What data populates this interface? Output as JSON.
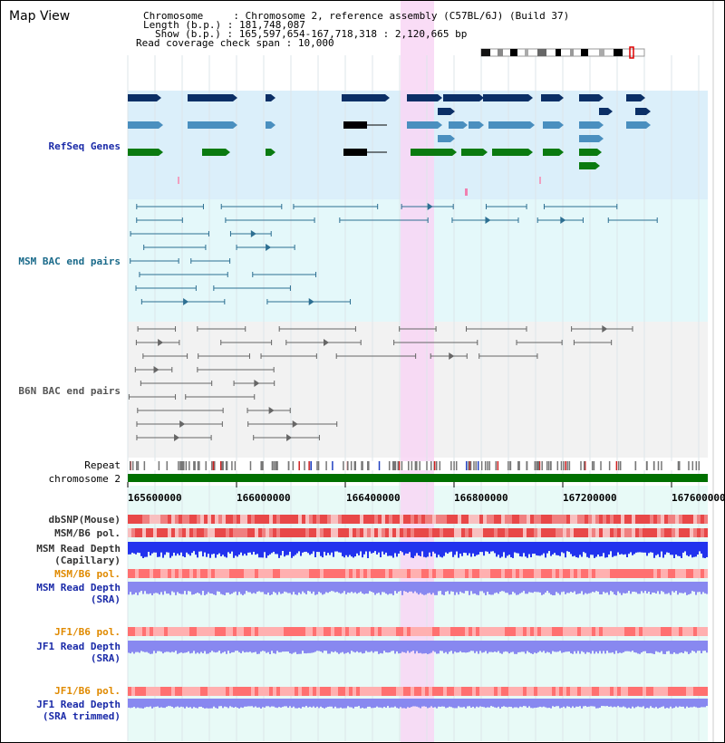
{
  "view": {
    "title": "Map View"
  },
  "info": {
    "chromosome_label": "Chromosome",
    "chromosome_value": "Chromosome 2, reference assembly (C57BL/6J) (Build 37)",
    "length_label": "Length (b.p.)",
    "length_value": "181,748,087",
    "show_label": "Show (b.p.)",
    "show_value": "165,597,654-167,718,318 : 2,120,665 bp",
    "coverage_label": "Read coverage check span",
    "coverage_value": "10,000"
  },
  "tracks": {
    "refseq": "RefSeq Genes",
    "msm_bac": "MSM BAC end pairs",
    "b6n_bac": "B6N BAC end pairs",
    "repeat": "Repeat",
    "chromosome": "chromosome 2",
    "dbsnp": "dbSNP(Mouse)",
    "msm_b6_pol": "MSM/B6 pol.",
    "msm_depth_cap_1": "MSM Read Depth",
    "msm_depth_cap_2": "(Capillary)",
    "msm_b6_pol_2": "MSM/B6 pol.",
    "msm_depth_sra_1": "MSM Read Depth",
    "msm_depth_sra_2": "(SRA)",
    "jf1_b6_pol": "JF1/B6 pol.",
    "jf1_depth_sra_1": "JF1 Read Depth",
    "jf1_depth_sra_2": "(SRA)",
    "jf1_b6_pol_2": "JF1/B6 pol.",
    "jf1_depth_trim_1": "JF1 Read Depth",
    "jf1_depth_trim_2": "(SRA trimmed)"
  },
  "axis": {
    "ticks": [
      "165600000",
      "166000000",
      "166400000",
      "166800000",
      "167200000",
      "167600000"
    ]
  },
  "colors": {
    "highlight": "#f8d6f4",
    "refseq_bg": "#dbeffa",
    "msm_bg": "#e4f8fa",
    "b6n_bg": "#f2f2f2",
    "lower_bg": "#e8faf7",
    "gene_dark": "#0b2f66",
    "gene_mid": "#4a8fbf",
    "gene_green": "#0a7a10",
    "msm_line": "#2d6f92",
    "b6n_line": "#666666",
    "chrom_bar": "#007000",
    "depth_blue": "#2233ee",
    "depth_violet": "#8888f0",
    "label_blue": "#1a2aa8",
    "label_teal": "#1a6a8a",
    "label_orange": "#e08a00"
  }
}
